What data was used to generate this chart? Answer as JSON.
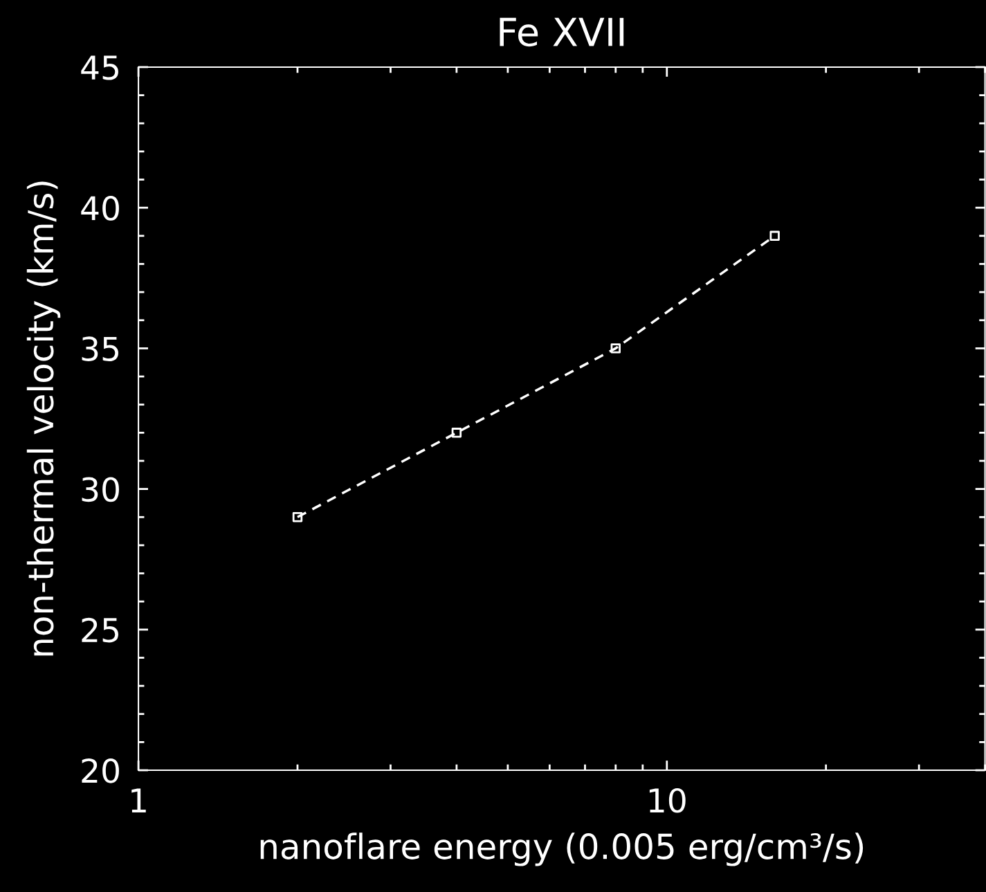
{
  "chart_data": {
    "type": "line",
    "title": "Fe XVII",
    "xlabel": "nanoflare energy (0.005 erg/cm³/s)",
    "ylabel": "non-thermal velocity (km/s)",
    "x": [
      2,
      4,
      8,
      16
    ],
    "series": [
      {
        "color": "#ffffff",
        "values": [
          29,
          32,
          35,
          39
        ]
      }
    ],
    "log": "x",
    "xlim": [
      1,
      40
    ],
    "xticks": [
      1,
      10
    ],
    "ylim": [
      20,
      45
    ],
    "yticks": [
      20,
      25,
      30,
      35,
      40,
      45
    ],
    "marker": "square",
    "line_style": "dashed",
    "grid": false
  }
}
